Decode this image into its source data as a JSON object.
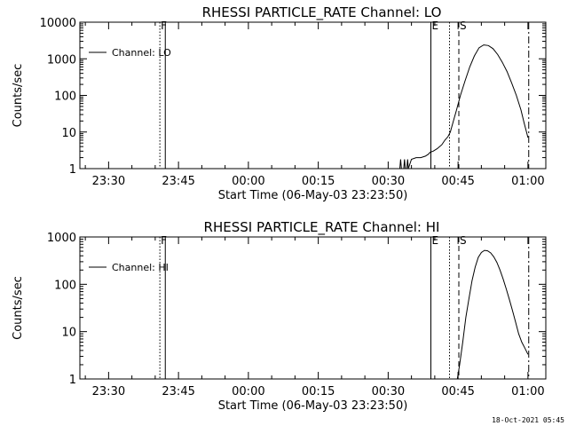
{
  "footer_timestamp": "18-Oct-2021 05:45",
  "chart_data": [
    {
      "type": "line",
      "title": "RHESSI PARTICLE_RATE Channel: LO",
      "xlabel": "Start Time (06-May-03 23:23:50)",
      "ylabel": "Counts/sec",
      "x_ticks": [
        "23:30",
        "23:45",
        "00:00",
        "00:15",
        "00:30",
        "00:45",
        "01:00"
      ],
      "y_ticks": [
        "1",
        "10",
        "100",
        "1000",
        "10000"
      ],
      "y_scale": "log",
      "ylim": [
        1,
        10000
      ],
      "xlim": [
        "23:23:50",
        "01:03:50"
      ],
      "legend": {
        "position": "top-left",
        "entries": [
          "Channel: LO"
        ]
      },
      "markers": [
        {
          "label": "F",
          "time": "23:41:00",
          "style": "dotted"
        },
        {
          "label": "",
          "time": "23:42:10",
          "style": "solid"
        },
        {
          "label": "E",
          "time": "00:39:10",
          "style": "solid"
        },
        {
          "label": "",
          "time": "00:43:10",
          "style": "dotted"
        },
        {
          "label": "S",
          "time": "00:45:10",
          "style": "dashed"
        },
        {
          "label": "",
          "time": "01:00:10",
          "style": "dashdot"
        }
      ],
      "series": [
        {
          "name": "Channel: LO",
          "points": [
            {
              "t": "00:32:30",
              "y": 1
            },
            {
              "t": "00:32:40",
              "y": 1.8
            },
            {
              "t": "00:32:50",
              "y": 1
            },
            {
              "t": "00:33:20",
              "y": 1
            },
            {
              "t": "00:33:30",
              "y": 1.8
            },
            {
              "t": "00:33:40",
              "y": 1
            },
            {
              "t": "00:34:00",
              "y": 1
            },
            {
              "t": "00:34:10",
              "y": 1.8
            },
            {
              "t": "00:34:20",
              "y": 1
            },
            {
              "t": "00:35:00",
              "y": 1.8
            },
            {
              "t": "00:36:00",
              "y": 2
            },
            {
              "t": "00:37:00",
              "y": 2
            },
            {
              "t": "00:38:00",
              "y": 2.2
            },
            {
              "t": "00:38:40",
              "y": 2.5
            },
            {
              "t": "00:39:00",
              "y": 2.8
            },
            {
              "t": "00:39:40",
              "y": 3
            },
            {
              "t": "00:40:30",
              "y": 3.5
            },
            {
              "t": "00:41:30",
              "y": 4.5
            },
            {
              "t": "00:42:10",
              "y": 6
            },
            {
              "t": "00:42:50",
              "y": 7.5
            },
            {
              "t": "00:43:20",
              "y": 10
            },
            {
              "t": "00:44:00",
              "y": 20
            },
            {
              "t": "00:44:40",
              "y": 40
            },
            {
              "t": "00:45:30",
              "y": 100
            },
            {
              "t": "00:46:30",
              "y": 250
            },
            {
              "t": "00:47:30",
              "y": 600
            },
            {
              "t": "00:48:30",
              "y": 1200
            },
            {
              "t": "00:49:30",
              "y": 2000
            },
            {
              "t": "00:50:30",
              "y": 2400
            },
            {
              "t": "00:51:30",
              "y": 2300
            },
            {
              "t": "00:52:30",
              "y": 1900
            },
            {
              "t": "00:53:30",
              "y": 1300
            },
            {
              "t": "00:54:30",
              "y": 800
            },
            {
              "t": "00:55:30",
              "y": 450
            },
            {
              "t": "00:56:30",
              "y": 220
            },
            {
              "t": "00:57:30",
              "y": 100
            },
            {
              "t": "00:58:30",
              "y": 40
            },
            {
              "t": "00:59:10",
              "y": 18
            },
            {
              "t": "01:00:00",
              "y": 7
            }
          ]
        }
      ]
    },
    {
      "type": "line",
      "title": "RHESSI PARTICLE_RATE Channel: HI",
      "xlabel": "Start Time (06-May-03 23:23:50)",
      "ylabel": "Counts/sec",
      "x_ticks": [
        "23:30",
        "23:45",
        "00:00",
        "00:15",
        "00:30",
        "00:45",
        "01:00"
      ],
      "y_ticks": [
        "1",
        "10",
        "100",
        "1000"
      ],
      "y_scale": "log",
      "ylim": [
        1,
        1000
      ],
      "xlim": [
        "23:23:50",
        "01:03:50"
      ],
      "legend": {
        "position": "top-left",
        "entries": [
          "Channel: HI"
        ]
      },
      "markers": [
        {
          "label": "F",
          "time": "23:41:00",
          "style": "dotted"
        },
        {
          "label": "",
          "time": "23:42:10",
          "style": "solid"
        },
        {
          "label": "E",
          "time": "00:39:10",
          "style": "solid"
        },
        {
          "label": "",
          "time": "00:43:10",
          "style": "dotted"
        },
        {
          "label": "S",
          "time": "00:45:10",
          "style": "dashed"
        },
        {
          "label": "",
          "time": "01:00:10",
          "style": "dashdot"
        }
      ],
      "series": [
        {
          "name": "Channel: HI",
          "points": [
            {
              "t": "00:44:50",
              "y": 1
            },
            {
              "t": "00:45:20",
              "y": 2
            },
            {
              "t": "00:46:00",
              "y": 6
            },
            {
              "t": "00:46:40",
              "y": 20
            },
            {
              "t": "00:47:20",
              "y": 50
            },
            {
              "t": "00:48:00",
              "y": 120
            },
            {
              "t": "00:48:40",
              "y": 230
            },
            {
              "t": "00:49:20",
              "y": 370
            },
            {
              "t": "00:50:00",
              "y": 470
            },
            {
              "t": "00:50:40",
              "y": 520
            },
            {
              "t": "00:51:20",
              "y": 510
            },
            {
              "t": "00:52:00",
              "y": 460
            },
            {
              "t": "00:52:40",
              "y": 380
            },
            {
              "t": "00:53:20",
              "y": 290
            },
            {
              "t": "00:54:00",
              "y": 200
            },
            {
              "t": "00:54:40",
              "y": 130
            },
            {
              "t": "00:55:20",
              "y": 80
            },
            {
              "t": "00:56:00",
              "y": 48
            },
            {
              "t": "00:56:40",
              "y": 28
            },
            {
              "t": "00:57:20",
              "y": 16
            },
            {
              "t": "00:58:00",
              "y": 9
            },
            {
              "t": "00:58:40",
              "y": 6
            },
            {
              "t": "00:59:20",
              "y": 4.5
            },
            {
              "t": "01:00:00",
              "y": 3.3
            }
          ]
        }
      ]
    }
  ]
}
